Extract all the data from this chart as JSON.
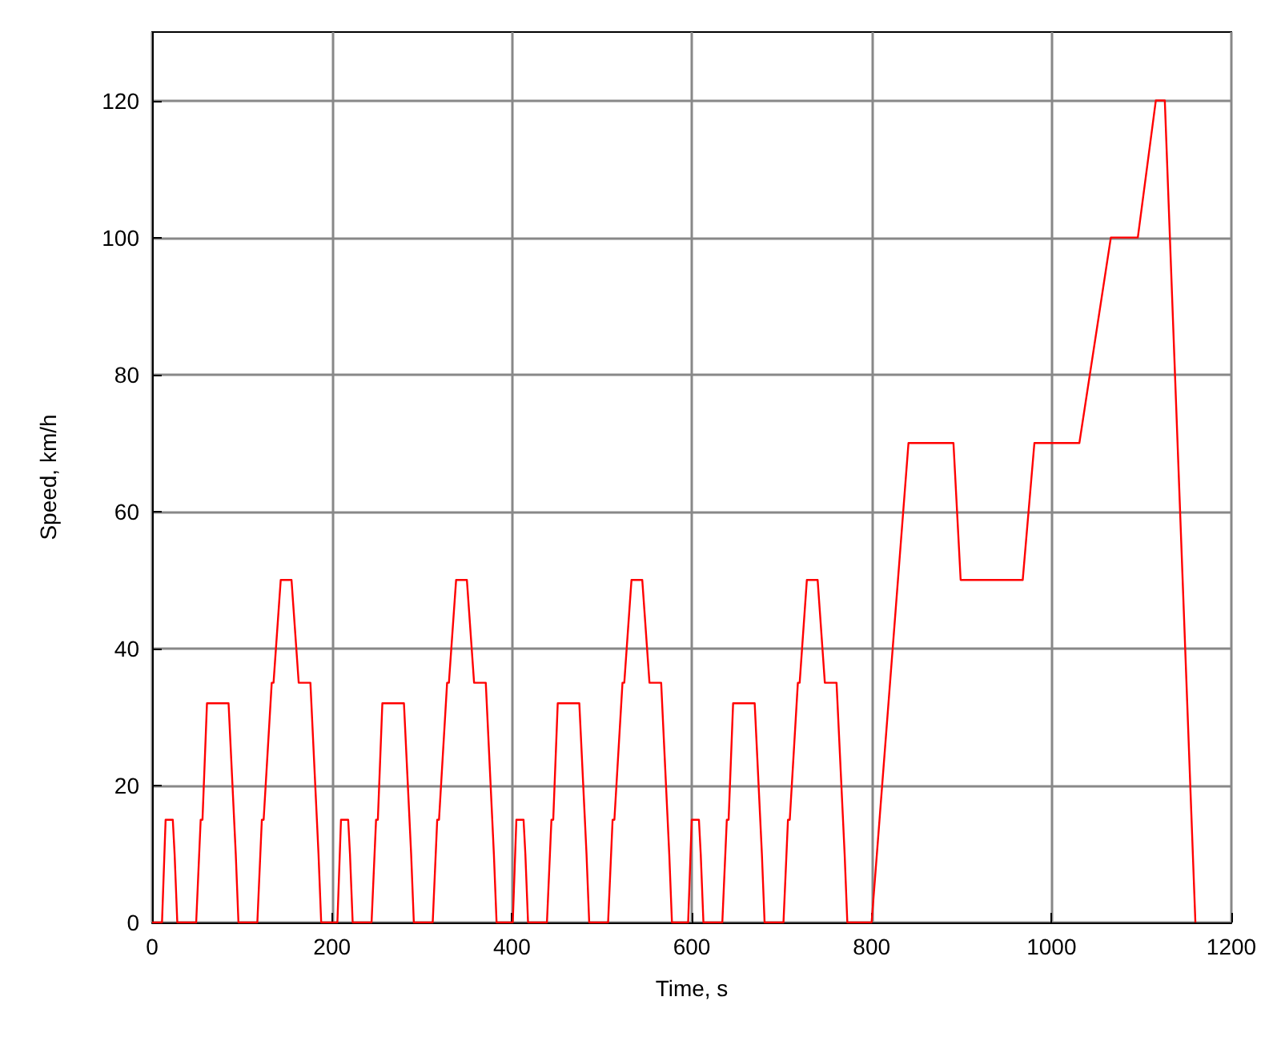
{
  "chart_data": {
    "type": "line",
    "xlabel": "Time, s",
    "ylabel": "Speed, km/h",
    "xlim": [
      0,
      1200
    ],
    "xticks": [
      0,
      200,
      400,
      600,
      800,
      1000,
      1200
    ],
    "ylim": [
      0,
      130
    ],
    "yticks": [
      0,
      20,
      40,
      60,
      80,
      100,
      120
    ],
    "grid": true,
    "marker": "none",
    "line_style": "solid",
    "series": [
      {
        "color": "#ff0000",
        "x": [
          0,
          11,
          15,
          23,
          25,
          28,
          49,
          54,
          56,
          61,
          85,
          93,
          96,
          117,
          122,
          124,
          133,
          135,
          143,
          155,
          163,
          176,
          185,
          188,
          195,
          206,
          210,
          218,
          220,
          223,
          244,
          249,
          251,
          256,
          280,
          288,
          291,
          312,
          317,
          319,
          328,
          330,
          338,
          350,
          358,
          371,
          380,
          383,
          390,
          401,
          405,
          413,
          415,
          418,
          439,
          444,
          446,
          451,
          475,
          483,
          486,
          507,
          512,
          514,
          523,
          525,
          533,
          545,
          553,
          566,
          575,
          578,
          585,
          596,
          600,
          608,
          610,
          613,
          634,
          639,
          641,
          646,
          670,
          678,
          681,
          702,
          707,
          709,
          718,
          720,
          728,
          740,
          748,
          761,
          770,
          773,
          780,
          800,
          841,
          891,
          899,
          968,
          981,
          1031,
          1066,
          1096,
          1116,
          1126,
          1160
        ],
        "values": [
          0,
          0,
          15,
          15,
          10,
          0,
          0,
          15,
          15,
          32,
          32,
          10,
          0,
          0,
          15,
          15,
          35,
          35,
          50,
          50,
          35,
          35,
          10,
          0,
          0,
          0,
          15,
          15,
          10,
          0,
          0,
          15,
          15,
          32,
          32,
          10,
          0,
          0,
          15,
          15,
          35,
          35,
          50,
          50,
          35,
          35,
          10,
          0,
          0,
          0,
          15,
          15,
          10,
          0,
          0,
          15,
          15,
          32,
          32,
          10,
          0,
          0,
          15,
          15,
          35,
          35,
          50,
          50,
          35,
          35,
          10,
          0,
          0,
          0,
          15,
          15,
          10,
          0,
          0,
          15,
          15,
          32,
          32,
          10,
          0,
          0,
          15,
          15,
          35,
          35,
          50,
          50,
          35,
          35,
          10,
          0,
          0,
          0,
          70,
          70,
          50,
          50,
          70,
          70,
          100,
          100,
          120,
          120,
          0
        ]
      }
    ]
  }
}
